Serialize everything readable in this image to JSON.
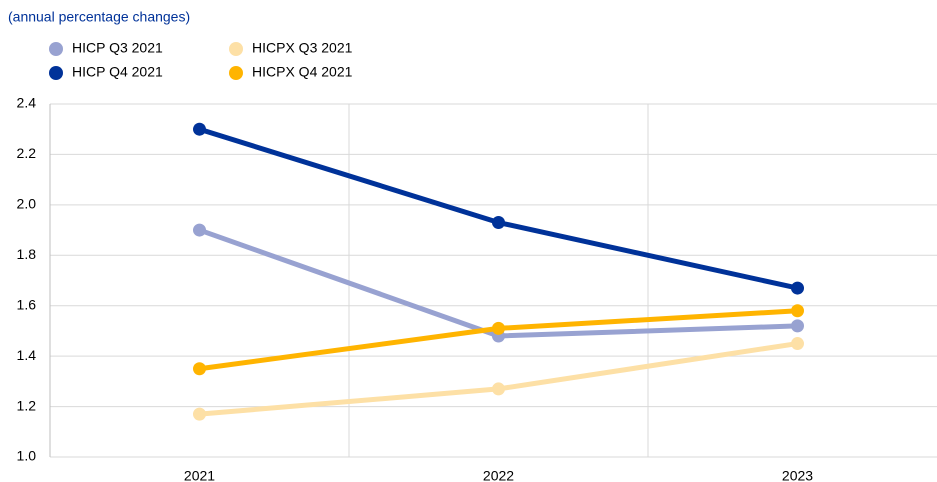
{
  "chart_data": {
    "type": "line",
    "title": "(annual percentage changes)",
    "categories": [
      "2021",
      "2022",
      "2023"
    ],
    "series": [
      {
        "name": "HICP Q3 2021",
        "color": "#98a2d1",
        "values": [
          1.9,
          1.48,
          1.52
        ]
      },
      {
        "name": "HICP Q4 2021",
        "color": "#003299",
        "values": [
          2.3,
          1.93,
          1.67
        ]
      },
      {
        "name": "HICPX Q3 2021",
        "color": "#fde0a6",
        "values": [
          1.17,
          1.27,
          1.45
        ]
      },
      {
        "name": "HICPX Q4 2021",
        "color": "#ffb400",
        "values": [
          1.35,
          1.51,
          1.58
        ]
      }
    ],
    "ylim": [
      1,
      2.4
    ],
    "yticks": [
      {
        "value": 1,
        "label": "1.0"
      },
      1.2,
      1.4,
      1.6,
      1.8,
      {
        "value": 2,
        "label": "2.0"
      },
      2.2,
      2.4
    ],
    "grid": true
  }
}
